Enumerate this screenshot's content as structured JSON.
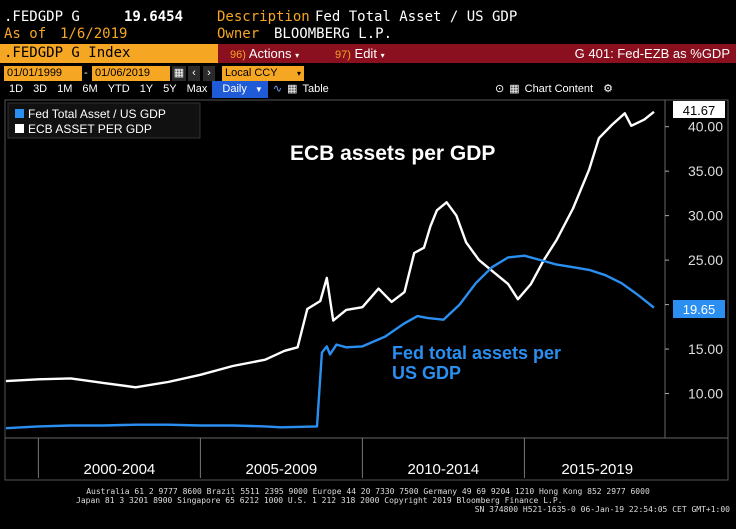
{
  "header": {
    "ticker": ".FEDGDP G",
    "value": "19.6454",
    "as_of_label": "As of",
    "as_of_date": "1/6/2019",
    "description_label": "Description",
    "description": "Fed Total Asset / US GDP",
    "owner_label": "Owner",
    "owner": "BLOOMBERG L.P."
  },
  "titlebar": {
    "index": ".FEDGDP G Index",
    "actions_num": "96)",
    "actions": "Actions",
    "edit_num": "97)",
    "edit": "Edit",
    "right_title": "G 401: Fed-EZB as %GDP"
  },
  "controls": {
    "start_date": "01/01/1999",
    "end_date": "01/06/2019",
    "currency": "Local CCY"
  },
  "toolbar": {
    "ranges": [
      "1D",
      "3D",
      "1M",
      "6M",
      "YTD",
      "1Y",
      "5Y",
      "Max"
    ],
    "frequency": "Daily",
    "table": "Table",
    "chart_content": "Chart Content"
  },
  "colors": {
    "fed": "#2a8ff0",
    "ecb": "#ffffff",
    "accent": "#f5a623",
    "titlebar": "#8a0f1f"
  },
  "chart_data": {
    "type": "line",
    "legend": [
      "Fed Total Asset / US GDP",
      "ECB ASSET PER GDP"
    ],
    "annotations": [
      "ECB assets per GDP",
      "Fed total assets per\nUS GDP"
    ],
    "last_values": {
      "ecb": "41.67",
      "fed": "19.65"
    },
    "ylim": [
      5,
      43
    ],
    "y_ticks": [
      "10.00",
      "15.00",
      "20.00",
      "25.00",
      "30.00",
      "35.00",
      "40.00"
    ],
    "x_period_labels": [
      "2000-2004",
      "2005-2009",
      "2010-2014",
      "2015-2019"
    ],
    "series": [
      {
        "name": "ECB ASSET PER GDP",
        "points": [
          [
            1999.0,
            11.4
          ],
          [
            2000.0,
            11.6
          ],
          [
            2001.0,
            11.7
          ],
          [
            2002.0,
            11.2
          ],
          [
            2003.0,
            10.7
          ],
          [
            2004.0,
            11.3
          ],
          [
            2005.0,
            12.1
          ],
          [
            2006.0,
            13.1
          ],
          [
            2007.0,
            13.8
          ],
          [
            2007.6,
            14.8
          ],
          [
            2008.0,
            15.2
          ],
          [
            2008.3,
            19.5
          ],
          [
            2008.7,
            20.4
          ],
          [
            2008.9,
            23.0
          ],
          [
            2009.1,
            18.2
          ],
          [
            2009.5,
            19.4
          ],
          [
            2010.0,
            19.7
          ],
          [
            2010.5,
            21.8
          ],
          [
            2010.9,
            20.3
          ],
          [
            2011.3,
            21.4
          ],
          [
            2011.6,
            25.8
          ],
          [
            2011.9,
            26.4
          ],
          [
            2012.1,
            28.8
          ],
          [
            2012.3,
            30.6
          ],
          [
            2012.6,
            31.5
          ],
          [
            2012.9,
            30.0
          ],
          [
            2013.2,
            27.0
          ],
          [
            2013.6,
            25.0
          ],
          [
            2014.0,
            23.8
          ],
          [
            2014.5,
            22.3
          ],
          [
            2014.8,
            20.6
          ],
          [
            2015.2,
            22.3
          ],
          [
            2015.6,
            25.0
          ],
          [
            2016.0,
            27.3
          ],
          [
            2016.5,
            30.8
          ],
          [
            2017.0,
            35.2
          ],
          [
            2017.3,
            38.7
          ],
          [
            2017.7,
            40.2
          ],
          [
            2018.1,
            41.5
          ],
          [
            2018.3,
            40.1
          ],
          [
            2018.7,
            40.8
          ],
          [
            2019.0,
            41.67
          ]
        ]
      },
      {
        "name": "Fed Total Asset / US GDP",
        "points": [
          [
            1999.0,
            6.1
          ],
          [
            2000.0,
            6.3
          ],
          [
            2001.0,
            6.4
          ],
          [
            2002.0,
            6.4
          ],
          [
            2003.0,
            6.5
          ],
          [
            2004.0,
            6.5
          ],
          [
            2005.0,
            6.4
          ],
          [
            2006.0,
            6.4
          ],
          [
            2007.0,
            6.3
          ],
          [
            2007.5,
            6.2
          ],
          [
            2008.6,
            6.3
          ],
          [
            2008.75,
            14.6
          ],
          [
            2008.9,
            15.3
          ],
          [
            2009.0,
            14.4
          ],
          [
            2009.2,
            15.5
          ],
          [
            2009.5,
            15.2
          ],
          [
            2010.0,
            15.3
          ],
          [
            2010.7,
            16.4
          ],
          [
            2011.3,
            17.9
          ],
          [
            2011.7,
            18.7
          ],
          [
            2012.0,
            18.5
          ],
          [
            2012.5,
            18.3
          ],
          [
            2013.0,
            20.0
          ],
          [
            2013.5,
            22.4
          ],
          [
            2014.0,
            24.2
          ],
          [
            2014.5,
            25.3
          ],
          [
            2015.0,
            25.5
          ],
          [
            2015.5,
            25.0
          ],
          [
            2016.0,
            24.5
          ],
          [
            2016.5,
            24.2
          ],
          [
            2017.0,
            23.9
          ],
          [
            2017.5,
            23.3
          ],
          [
            2018.0,
            22.4
          ],
          [
            2018.5,
            21.1
          ],
          [
            2019.0,
            19.65
          ]
        ]
      }
    ]
  },
  "footer": {
    "line1": "Australia 61 2 9777 8600 Brazil 5511 2395 9000 Europe 44 20 7330 7500 Germany 49 69 9204 1210 Hong Kong 852 2977 6000",
    "line2": "Japan 81 3 3201 8900        Singapore 65 6212 1000        U.S. 1 212 318 2000              Copyright 2019 Bloomberg Finance L.P.",
    "line3": "SN 374800 H521-1635-0 06-Jan-19 22:54:05 CET  GMT+1:00"
  }
}
